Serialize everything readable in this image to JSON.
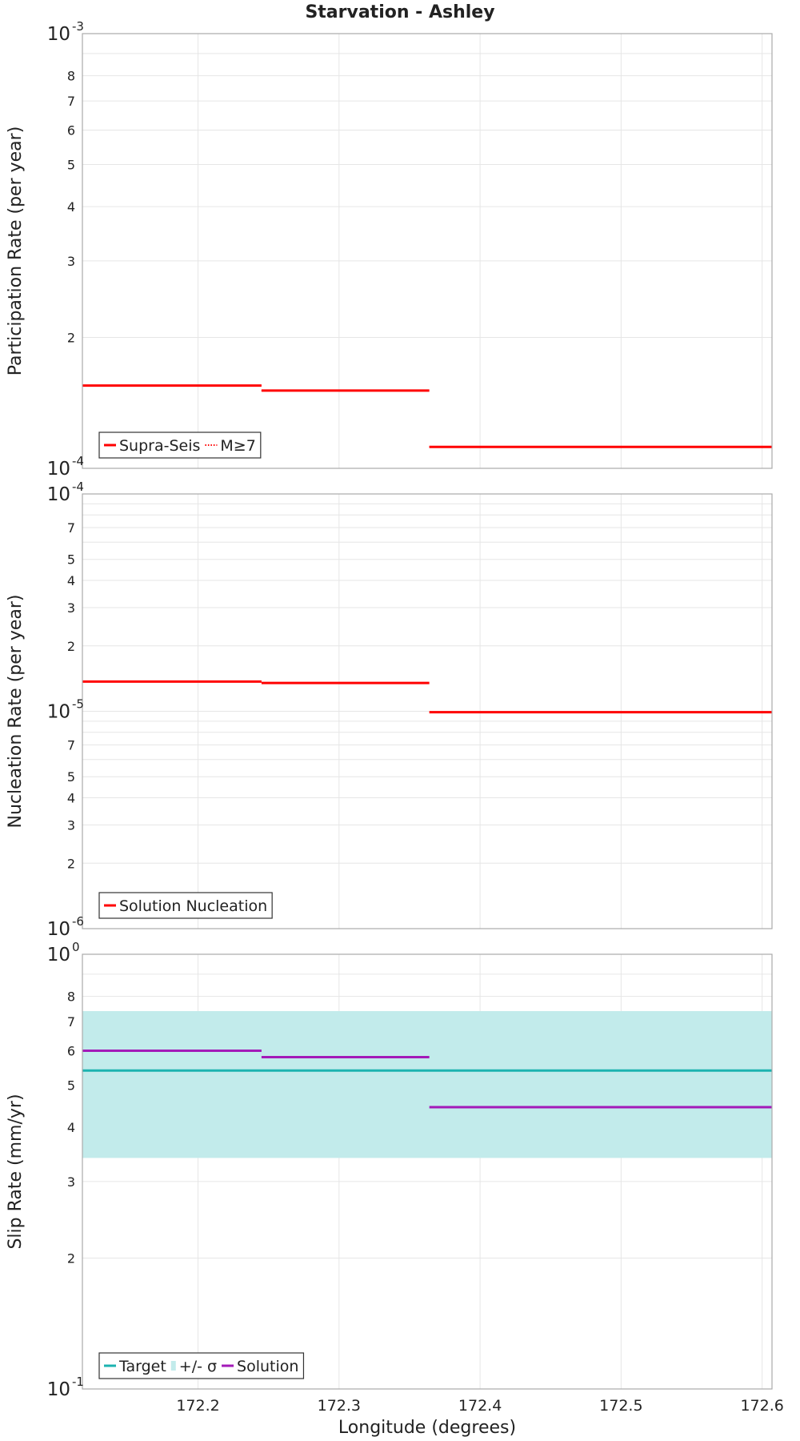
{
  "title": "Starvation - Ashley",
  "x_axis": {
    "label": "Longitude (degrees)",
    "range": [
      172.118,
      172.607
    ],
    "ticks": [
      172.2,
      172.3,
      172.4,
      172.5,
      172.6
    ],
    "tick_labels": [
      "172.2",
      "172.3",
      "172.4",
      "172.5",
      "172.6"
    ]
  },
  "chart_data": [
    {
      "type": "line",
      "panel": "participation",
      "ylabel": "Participation Rate (per year)",
      "yscale": "log",
      "ylim": [
        0.0001,
        0.001
      ],
      "decade_labels": [
        {
          "value": 0.001,
          "base": "10",
          "exp": "-3"
        },
        {
          "value": 0.0001,
          "base": "10",
          "exp": "-4"
        }
      ],
      "minor_ticks": [
        {
          "value": 0.0008,
          "label": "8"
        },
        {
          "value": 0.0007,
          "label": "7"
        },
        {
          "value": 0.0006,
          "label": "6"
        },
        {
          "value": 0.0005,
          "label": "5"
        },
        {
          "value": 0.0004,
          "label": "4"
        },
        {
          "value": 0.0003,
          "label": "3"
        },
        {
          "value": 0.0002,
          "label": "2"
        }
      ],
      "grid_values": [
        0.0009,
        0.0008,
        0.0007,
        0.0006,
        0.0005,
        0.0004,
        0.0003,
        0.0002
      ],
      "series": [
        {
          "name": "Supra-Seis",
          "color": "#ff0000",
          "dash": "solid",
          "segments": [
            {
              "x0": 172.118,
              "x1": 172.245,
              "y": 0.000155
            },
            {
              "x0": 172.245,
              "x1": 172.364,
              "y": 0.000151
            },
            {
              "x0": 172.364,
              "x1": 172.607,
              "y": 0.000112
            }
          ]
        },
        {
          "name": "M≥7",
          "color": "#ff0000",
          "dash": "dotted",
          "segments": [
            {
              "x0": 172.118,
              "x1": 172.245,
              "y": 0.000155
            },
            {
              "x0": 172.245,
              "x1": 172.364,
              "y": 0.000151
            },
            {
              "x0": 172.364,
              "x1": 172.607,
              "y": 0.000112
            }
          ]
        }
      ],
      "legend": {
        "position": "bottom-left",
        "entries": [
          {
            "label": "Supra-Seis",
            "color": "#ff0000",
            "style": "solid"
          },
          {
            "label": "M≥7",
            "color": "#ff0000",
            "style": "dotted"
          }
        ]
      }
    },
    {
      "type": "line",
      "panel": "nucleation",
      "ylabel": "Nucleation Rate (per year)",
      "yscale": "log",
      "ylim": [
        1e-06,
        0.0001
      ],
      "decade_labels": [
        {
          "value": 0.0001,
          "base": "10",
          "exp": "-4"
        },
        {
          "value": 1e-05,
          "base": "10",
          "exp": "-5"
        },
        {
          "value": 1e-06,
          "base": "10",
          "exp": "-6"
        }
      ],
      "minor_ticks": [
        {
          "value": 7e-05,
          "label": "7"
        },
        {
          "value": 5e-05,
          "label": "5"
        },
        {
          "value": 4e-05,
          "label": "4"
        },
        {
          "value": 3e-05,
          "label": "3"
        },
        {
          "value": 2e-05,
          "label": "2"
        },
        {
          "value": 7e-06,
          "label": "7"
        },
        {
          "value": 5e-06,
          "label": "5"
        },
        {
          "value": 4e-06,
          "label": "4"
        },
        {
          "value": 3e-06,
          "label": "3"
        },
        {
          "value": 2e-06,
          "label": "2"
        }
      ],
      "grid_values": [
        9e-05,
        8e-05,
        7e-05,
        6e-05,
        5e-05,
        4e-05,
        3e-05,
        2e-05,
        1e-05,
        9e-06,
        8e-06,
        7e-06,
        6e-06,
        5e-06,
        4e-06,
        3e-06,
        2e-06
      ],
      "series": [
        {
          "name": "Solution Nucleation",
          "color": "#ff0000",
          "dash": "solid",
          "segments": [
            {
              "x0": 172.118,
              "x1": 172.245,
              "y": 1.37e-05
            },
            {
              "x0": 172.245,
              "x1": 172.364,
              "y": 1.35e-05
            },
            {
              "x0": 172.364,
              "x1": 172.607,
              "y": 9.9e-06
            }
          ]
        }
      ],
      "legend": {
        "position": "bottom-left",
        "entries": [
          {
            "label": "Solution Nucleation",
            "color": "#ff0000",
            "style": "solid"
          }
        ]
      }
    },
    {
      "type": "line",
      "panel": "slip",
      "ylabel": "Slip Rate (mm/yr)",
      "yscale": "log",
      "ylim": [
        0.1,
        1.0
      ],
      "decade_labels": [
        {
          "value": 1.0,
          "base": "10",
          "exp": "0"
        },
        {
          "value": 0.1,
          "base": "10",
          "exp": "-1"
        }
      ],
      "minor_ticks": [
        {
          "value": 0.8,
          "label": "8"
        },
        {
          "value": 0.7,
          "label": "7"
        },
        {
          "value": 0.6,
          "label": "6"
        },
        {
          "value": 0.5,
          "label": "5"
        },
        {
          "value": 0.4,
          "label": "4"
        },
        {
          "value": 0.3,
          "label": "3"
        },
        {
          "value": 0.2,
          "label": "2"
        }
      ],
      "grid_values": [
        0.9,
        0.8,
        0.7,
        0.6,
        0.5,
        0.4,
        0.3,
        0.2
      ],
      "band": {
        "name": "+/- σ",
        "color": "#c2ebeb",
        "y_low": 0.34,
        "y_high": 0.74
      },
      "series": [
        {
          "name": "Target",
          "color": "#1cb3b0",
          "dash": "solid",
          "segments": [
            {
              "x0": 172.118,
              "x1": 172.607,
              "y": 0.54
            }
          ]
        },
        {
          "name": "Solution",
          "color": "#a31ab8",
          "dash": "solid",
          "segments": [
            {
              "x0": 172.118,
              "x1": 172.245,
              "y": 0.6
            },
            {
              "x0": 172.245,
              "x1": 172.364,
              "y": 0.58
            },
            {
              "x0": 172.364,
              "x1": 172.607,
              "y": 0.445
            }
          ]
        }
      ],
      "legend": {
        "position": "bottom-left",
        "entries": [
          {
            "label": "Target",
            "color": "#1cb3b0",
            "style": "solid"
          },
          {
            "label": "+/- σ",
            "color": "#c2ebeb",
            "style": "box"
          },
          {
            "label": "Solution",
            "color": "#a31ab8",
            "style": "solid"
          }
        ]
      }
    }
  ]
}
